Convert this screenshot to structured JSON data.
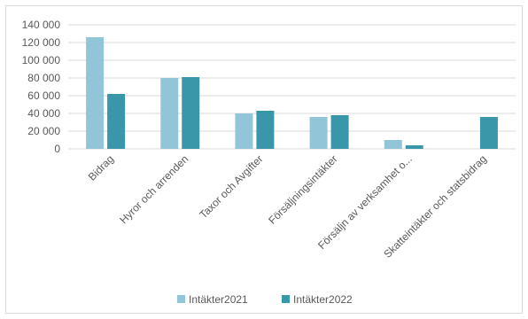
{
  "chart_data": {
    "type": "bar",
    "categories": [
      "Bidrag",
      "Hyror och arrenden",
      "Taxor och Avgifter",
      "Försäljningsintäkter",
      "Försäljn av verksamhet o...",
      "Skatteintäkter och statsbidrag"
    ],
    "series": [
      {
        "name": "Intäkter2021",
        "color": "#92c5d8",
        "values": [
          126000,
          80000,
          40000,
          36000,
          10000,
          0
        ]
      },
      {
        "name": "Intäkter2022",
        "color": "#3a97a9",
        "values": [
          62000,
          81000,
          43000,
          38000,
          4000,
          36000
        ]
      }
    ],
    "yticks": [
      "0",
      "20 000",
      "40 000",
      "60 000",
      "80 000",
      "100 000",
      "120 000",
      "140 000"
    ],
    "ylim": [
      0,
      140000
    ],
    "grid": true,
    "legend_position": "bottom"
  }
}
